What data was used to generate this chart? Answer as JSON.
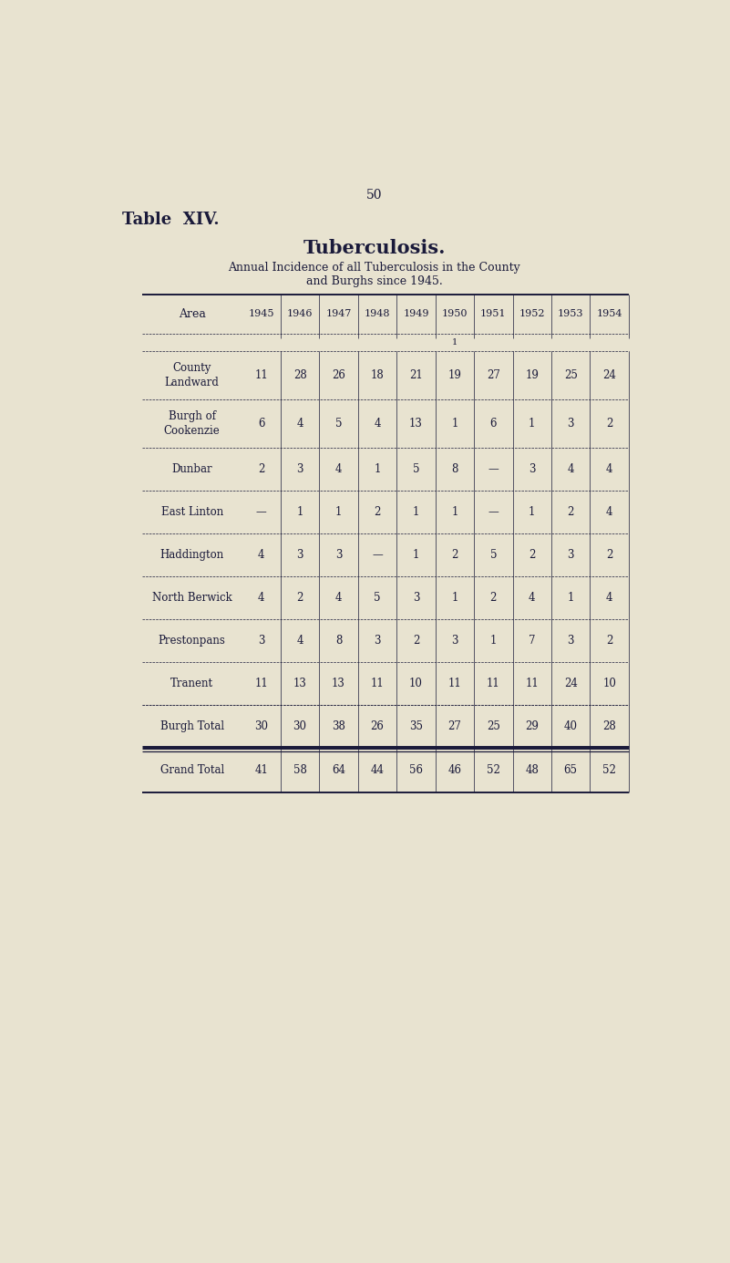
{
  "page_number": "50",
  "table_label": "Table  XIV.",
  "title": "Tuberculosis.",
  "subtitle_line1": "Annual Incidence of all Tuberculosis in the County",
  "subtitle_line2": "and Burghs since 1945.",
  "columns": [
    "Area",
    "1945",
    "1946",
    "1947",
    "1948",
    "1949",
    "1950",
    "1951",
    "1952",
    "1953",
    "1954"
  ],
  "rows": [
    {
      "area": "County\nLandward",
      "values": [
        "11",
        "28",
        "26",
        "18",
        "21",
        "19",
        "27",
        "19",
        "25",
        "24"
      ],
      "is_total": false,
      "is_grand": false
    },
    {
      "area": "Burgh of\nCookenzie",
      "values": [
        "6",
        "4",
        "5",
        "4",
        "13",
        "1",
        "6",
        "1",
        "3",
        "2"
      ],
      "is_total": false,
      "is_grand": false
    },
    {
      "area": "Dunbar",
      "values": [
        "2",
        "3",
        "4",
        "1",
        "5",
        "8",
        "—",
        "3",
        "4",
        "4"
      ],
      "is_total": false,
      "is_grand": false
    },
    {
      "area": "East Linton",
      "values": [
        "—",
        "1",
        "1",
        "2",
        "1",
        "1",
        "—",
        "1",
        "2",
        "4"
      ],
      "is_total": false,
      "is_grand": false
    },
    {
      "area": "Haddington",
      "values": [
        "4",
        "3",
        "3",
        "—",
        "1",
        "2",
        "5",
        "2",
        "3",
        "2"
      ],
      "is_total": false,
      "is_grand": false
    },
    {
      "area": "North Berwick",
      "values": [
        "4",
        "2",
        "4",
        "5",
        "3",
        "1",
        "2",
        "4",
        "1",
        "4"
      ],
      "is_total": false,
      "is_grand": false
    },
    {
      "area": "Prestonpans",
      "values": [
        "3",
        "4",
        "8",
        "3",
        "2",
        "3",
        "1",
        "7",
        "3",
        "2"
      ],
      "is_total": false,
      "is_grand": false
    },
    {
      "area": "Tranent",
      "values": [
        "11",
        "13",
        "13",
        "11",
        "10",
        "11",
        "11",
        "11",
        "24",
        "10"
      ],
      "is_total": false,
      "is_grand": false
    },
    {
      "area": "Burgh Total",
      "values": [
        "30",
        "30",
        "38",
        "26",
        "35",
        "27",
        "25",
        "29",
        "40",
        "28"
      ],
      "is_total": true,
      "is_grand": false
    },
    {
      "area": "Grand Total",
      "values": [
        "41",
        "58",
        "64",
        "44",
        "56",
        "46",
        "52",
        "48",
        "65",
        "52"
      ],
      "is_total": false,
      "is_grand": true
    }
  ],
  "bg_color": "#e8e3d0",
  "text_color": "#1a1a3a",
  "line_color": "#1a1a3a",
  "fig_width": 8.01,
  "fig_height": 13.85,
  "dpi": 100
}
